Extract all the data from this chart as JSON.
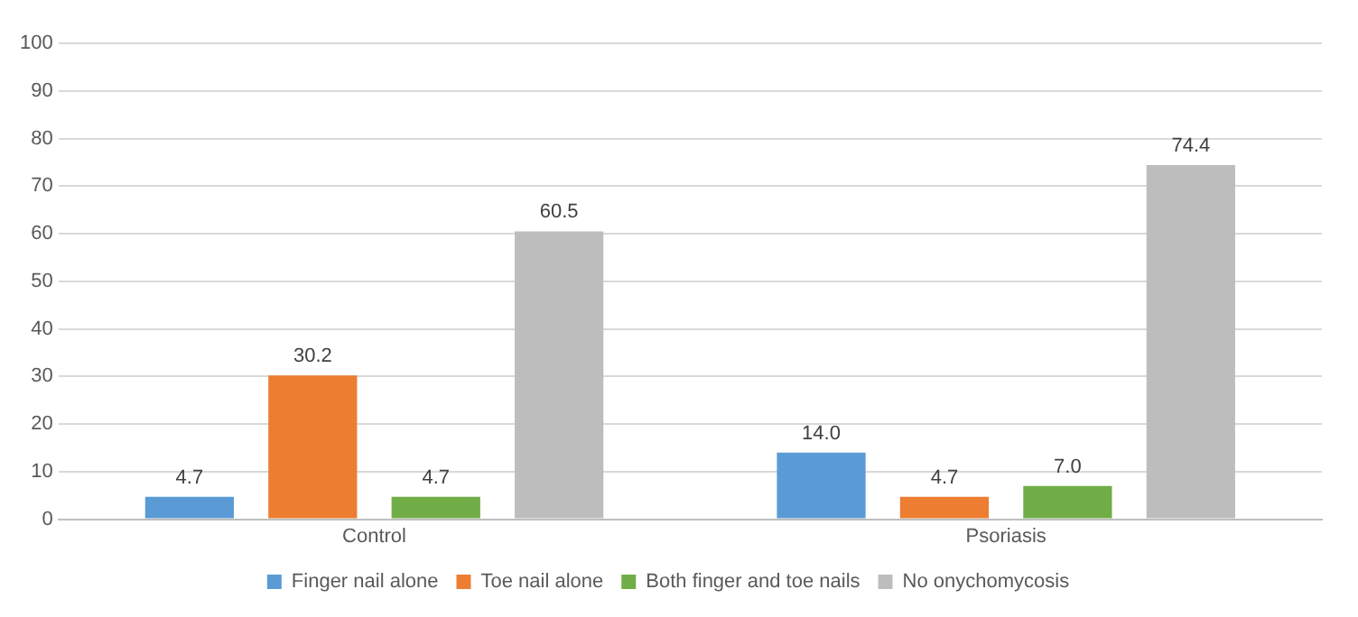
{
  "chart_data": {
    "type": "bar",
    "categories": [
      "Control",
      "Psoriasis"
    ],
    "series": [
      {
        "name": "Finger nail alone",
        "color": "#5b9bd5",
        "values": [
          4.7,
          14.0
        ],
        "value_labels": [
          "4.7",
          "14.0"
        ]
      },
      {
        "name": "Toe nail alone",
        "color": "#ed7d31",
        "values": [
          30.2,
          4.7
        ],
        "value_labels": [
          "30.2",
          "4.7"
        ]
      },
      {
        "name": "Both finger and toe nails",
        "color": "#70ad47",
        "values": [
          4.7,
          7.0
        ],
        "value_labels": [
          "4.7",
          "7.0"
        ]
      },
      {
        "name": "No onychomycosis",
        "color": "#bdbdbd",
        "values": [
          60.5,
          74.4
        ],
        "value_labels": [
          "60.5",
          "74.4"
        ]
      }
    ],
    "ylim": [
      0,
      100
    ],
    "yticks": [
      0,
      10,
      20,
      30,
      40,
      50,
      60,
      70,
      80,
      90,
      100
    ],
    "grid": "y",
    "legend": "bottom"
  }
}
